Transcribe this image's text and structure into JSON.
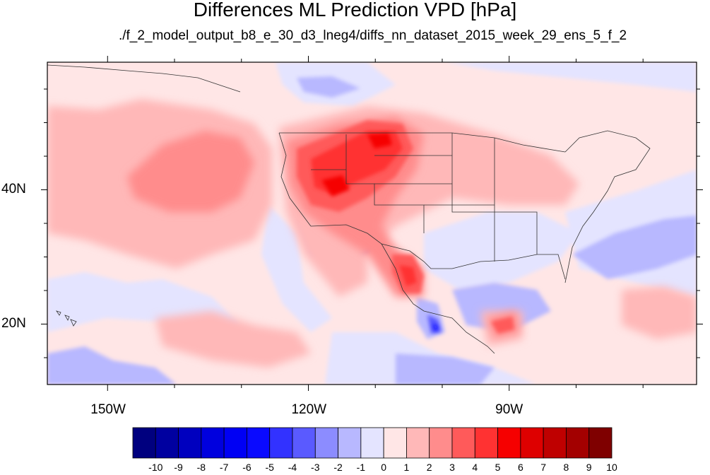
{
  "title": "Differences ML Prediction VPD [hPa]",
  "subtitle": "./f_2_model_output_b8_e_30_d3_lneg4/diffs_nn_dataset_2015_week_29_ens_5_f_2",
  "axes": {
    "x_ticks": [
      {
        "value": -150,
        "label": "150W"
      },
      {
        "value": -120,
        "label": "120W"
      },
      {
        "value": -90,
        "label": "90W"
      }
    ],
    "y_ticks": [
      {
        "value": 40,
        "label": "40N"
      },
      {
        "value": 20,
        "label": "20N"
      }
    ],
    "lon_range": [
      -159,
      -62
    ],
    "lat_range": [
      11,
      59
    ]
  },
  "colorbar": {
    "labels": [
      "-10",
      "-9",
      "-8",
      "-7",
      "-6",
      "-5",
      "-4",
      "-3",
      "-2",
      "-1",
      "0",
      "1",
      "2",
      "3",
      "4",
      "5",
      "6",
      "7",
      "8",
      "9",
      "10"
    ],
    "colors": [
      "#00007f",
      "#0000a0",
      "#0000bf",
      "#0000de",
      "#0000f4",
      "#0a0aff",
      "#3232ff",
      "#5a5aff",
      "#8c8cff",
      "#b8b8ff",
      "#e4e4ff",
      "#ffe6e6",
      "#ffb8b8",
      "#ff8c8c",
      "#ff5a5a",
      "#ff3232",
      "#f60000",
      "#de0000",
      "#bf0000",
      "#a30000",
      "#7f0000"
    ]
  }
}
